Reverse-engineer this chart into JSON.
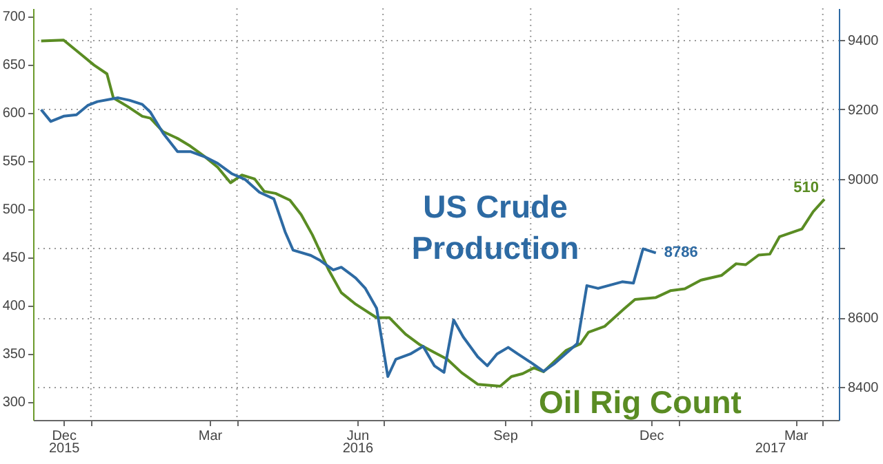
{
  "chart_data": {
    "type": "line",
    "xlim": [
      "2015-11-26",
      "2017-04-11"
    ],
    "xticks": [
      {
        "value": "2015-12-15",
        "label": "Dec"
      },
      {
        "value": "2016-01-01",
        "label": null
      },
      {
        "value": "2016-03-15",
        "label": "Mar"
      },
      {
        "value": "2016-04-01",
        "label": null
      },
      {
        "value": "2016-06-15",
        "label": "Jun"
      },
      {
        "value": "2016-07-01",
        "label": null
      },
      {
        "value": "2016-09-15",
        "label": "Sep"
      },
      {
        "value": "2016-10-01",
        "label": null
      },
      {
        "value": "2016-12-15",
        "label": "Dec"
      },
      {
        "value": "2017-01-01",
        "label": null
      },
      {
        "value": "2017-03-15",
        "label": "Mar"
      },
      {
        "value": "2017-04-01",
        "label": null
      }
    ],
    "x2lim": [
      "2015-11-26",
      "2017-04-11"
    ],
    "x2ticks": [
      {
        "value": "2015-12-15",
        "label": "2015"
      },
      {
        "value": "2016-06-15",
        "label": "2016"
      },
      {
        "value": "2017-02-27",
        "label": "2017"
      }
    ],
    "ylim": [
      281,
      708
    ],
    "yticks": [
      300,
      350,
      400,
      450,
      500,
      550,
      600,
      650,
      700
    ],
    "y2lim": [
      8305,
      9491
    ],
    "y2ticks": [
      8400,
      8600,
      {
        "value": 8800,
        "label": null
      },
      9000,
      9200,
      9400
    ],
    "grid": true,
    "series": [
      {
        "name": "Oil Rig Count",
        "color": "#5a8c23",
        "x": [
          "2015-12-01",
          "2015-12-15",
          "2015-12-26",
          "2016-01-03",
          "2016-01-11",
          "2016-01-15",
          "2016-01-24",
          "2016-02-02",
          "2016-02-07",
          "2016-02-15",
          "2016-02-24",
          "2016-03-03",
          "2016-03-12",
          "2016-03-20",
          "2016-03-28",
          "2016-04-04",
          "2016-04-12",
          "2016-04-18",
          "2016-04-25",
          "2016-05-04",
          "2016-05-11",
          "2016-05-18",
          "2016-05-28",
          "2016-06-05",
          "2016-06-14",
          "2016-06-27",
          "2016-07-05",
          "2016-07-15",
          "2016-07-24",
          "2016-08-02",
          "2016-08-10",
          "2016-08-19",
          "2016-08-29",
          "2016-09-12",
          "2016-09-19",
          "2016-09-26",
          "2016-10-03",
          "2016-10-09",
          "2016-10-23",
          "2016-11-01",
          "2016-11-06",
          "2016-11-16",
          "2016-11-28",
          "2016-12-05",
          "2016-12-18",
          "2016-12-27",
          "2017-01-05",
          "2017-01-15",
          "2017-01-28",
          "2017-02-06",
          "2017-02-12",
          "2017-02-20",
          "2017-02-27",
          "2017-03-05",
          "2017-03-19",
          "2017-03-26",
          "2017-04-02"
        ],
        "values": [
          674,
          675,
          660,
          649,
          640,
          615,
          606,
          596,
          594,
          580,
          573,
          565,
          554,
          543,
          527,
          535,
          531,
          518,
          516,
          509,
          494,
          473,
          437,
          413,
          401,
          387,
          387,
          370,
          359,
          351,
          344,
          330,
          318,
          316,
          326,
          329,
          335,
          331,
          353,
          360,
          372,
          378,
          396,
          406,
          408,
          415,
          417,
          426,
          431,
          443,
          442,
          452,
          453,
          471,
          479,
          497,
          510
        ],
        "value_labels": [
          null,
          null,
          null,
          null,
          null,
          null,
          null,
          null,
          null,
          null,
          null,
          null,
          null,
          null,
          null,
          null,
          null,
          null,
          null,
          null,
          null,
          null,
          null,
          null,
          null,
          null,
          null,
          null,
          null,
          null,
          null,
          null,
          null,
          null,
          null,
          null,
          null,
          null,
          null,
          null,
          null,
          null,
          null,
          null,
          null,
          null,
          null,
          null,
          null,
          null,
          null,
          null,
          null,
          null,
          null,
          null,
          "510"
        ]
      },
      {
        "name": "US Crude Production",
        "color": "#2d6aa3",
        "axis": "y2",
        "x": [
          "2015-12-01",
          "2015-12-07",
          "2015-12-15",
          "2015-12-23",
          "2015-12-30",
          "2016-01-05",
          "2016-01-18",
          "2016-01-25",
          "2016-02-02",
          "2016-02-07",
          "2016-02-15",
          "2016-02-24",
          "2016-03-03",
          "2016-03-12",
          "2016-03-20",
          "2016-03-29",
          "2016-04-06",
          "2016-04-15",
          "2016-04-24",
          "2016-05-01",
          "2016-05-06",
          "2016-05-17",
          "2016-05-23",
          "2016-05-31",
          "2016-06-05",
          "2016-06-14",
          "2016-06-20",
          "2016-06-27",
          "2016-07-04",
          "2016-07-09",
          "2016-07-18",
          "2016-07-26",
          "2016-08-02",
          "2016-08-08",
          "2016-08-14",
          "2016-08-20",
          "2016-08-29",
          "2016-09-04",
          "2016-09-10",
          "2016-09-17",
          "2016-09-23",
          "2016-10-02",
          "2016-10-09",
          "2016-10-16",
          "2016-10-30",
          "2016-11-05",
          "2016-11-12",
          "2016-11-27",
          "2016-12-04",
          "2016-12-10",
          "2016-12-18"
        ],
        "values": [
          9199,
          9165,
          9180,
          9184,
          9211,
          9222,
          9233,
          9226,
          9214,
          9192,
          9131,
          9078,
          9078,
          9063,
          9044,
          9014,
          8998,
          8961,
          8942,
          8847,
          8794,
          8779,
          8764,
          8737,
          8745,
          8714,
          8684,
          8627,
          8430,
          8480,
          8495,
          8517,
          8461,
          8442,
          8593,
          8544,
          8487,
          8461,
          8495,
          8514,
          8495,
          8468,
          8445,
          8468,
          8525,
          8692,
          8684,
          8703,
          8699,
          8798,
          8786
        ],
        "value_labels": [
          null,
          null,
          null,
          null,
          null,
          null,
          null,
          null,
          null,
          null,
          null,
          null,
          null,
          null,
          null,
          null,
          null,
          null,
          null,
          null,
          null,
          null,
          null,
          null,
          null,
          null,
          null,
          null,
          null,
          null,
          null,
          null,
          null,
          null,
          null,
          null,
          null,
          null,
          null,
          null,
          null,
          null,
          null,
          null,
          null,
          null,
          null,
          null,
          null,
          null,
          "8786"
        ]
      }
    ]
  }
}
